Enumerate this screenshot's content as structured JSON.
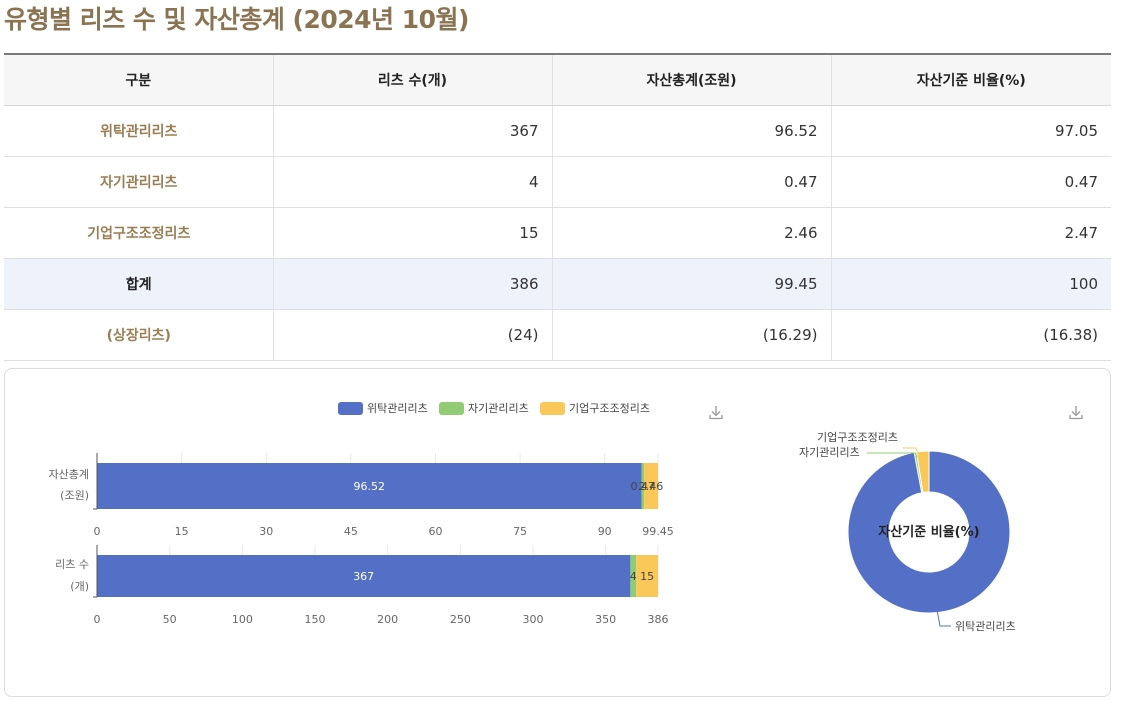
{
  "page": {
    "title": "유형별 리츠 수 및 자산총계 (2024년 10월)"
  },
  "table": {
    "headers": [
      "구분",
      "리츠 수(개)",
      "자산총계(조원)",
      "자산기준 비율(%)"
    ],
    "rows": [
      {
        "label": "위탁관리리츠",
        "count": "367",
        "assets": "96.52",
        "ratio": "97.05"
      },
      {
        "label": "자기관리리츠",
        "count": "4",
        "assets": "0.47",
        "ratio": "0.47"
      },
      {
        "label": "기업구조조정리츠",
        "count": "15",
        "assets": "2.46",
        "ratio": "2.47"
      },
      {
        "label": "합계",
        "count": "386",
        "assets": "99.45",
        "ratio": "100"
      },
      {
        "label": "(상장리츠)",
        "count": "(24)",
        "assets": "(16.29)",
        "ratio": "(16.38)"
      }
    ]
  },
  "colors": {
    "blue": "#5470c6",
    "green": "#91cc75",
    "yellow": "#fac858",
    "title": "#8a7350"
  },
  "icons": {
    "download": "download-icon"
  },
  "chart_data": [
    {
      "type": "bar",
      "orientation": "horizontal",
      "stacked": true,
      "legend": [
        "위탁관리리츠",
        "자기관리리츠",
        "기업구조조정리츠"
      ],
      "legend_position": "top-center",
      "panels": [
        {
          "category": [
            "자산총계",
            "(조원)"
          ],
          "values": [
            96.52,
            0.47,
            2.46
          ],
          "labels": [
            "96.52",
            "0.47",
            "2.46"
          ],
          "xlim": [
            0,
            99.45
          ],
          "ticks": [
            0,
            15,
            30,
            45,
            60,
            75,
            90,
            99.45
          ],
          "tick_labels": [
            "0",
            "15",
            "30",
            "45",
            "60",
            "75",
            "90",
            "99.45"
          ]
        },
        {
          "category": [
            "리츠 수",
            "(개)"
          ],
          "values": [
            367,
            4,
            15
          ],
          "labels": [
            "367",
            "4",
            "15"
          ],
          "xlim": [
            0,
            386
          ],
          "ticks": [
            0,
            50,
            100,
            150,
            200,
            250,
            300,
            350,
            386
          ],
          "tick_labels": [
            "0",
            "50",
            "100",
            "150",
            "200",
            "250",
            "300",
            "350",
            "386"
          ]
        }
      ]
    },
    {
      "type": "pie",
      "donut": true,
      "center_label": "자산기준 비율(%)",
      "slices": [
        {
          "name": "위탁관리리츠",
          "value": 97.05
        },
        {
          "name": "자기관리리츠",
          "value": 0.47
        },
        {
          "name": "기업구조조정리츠",
          "value": 2.47
        }
      ]
    }
  ]
}
